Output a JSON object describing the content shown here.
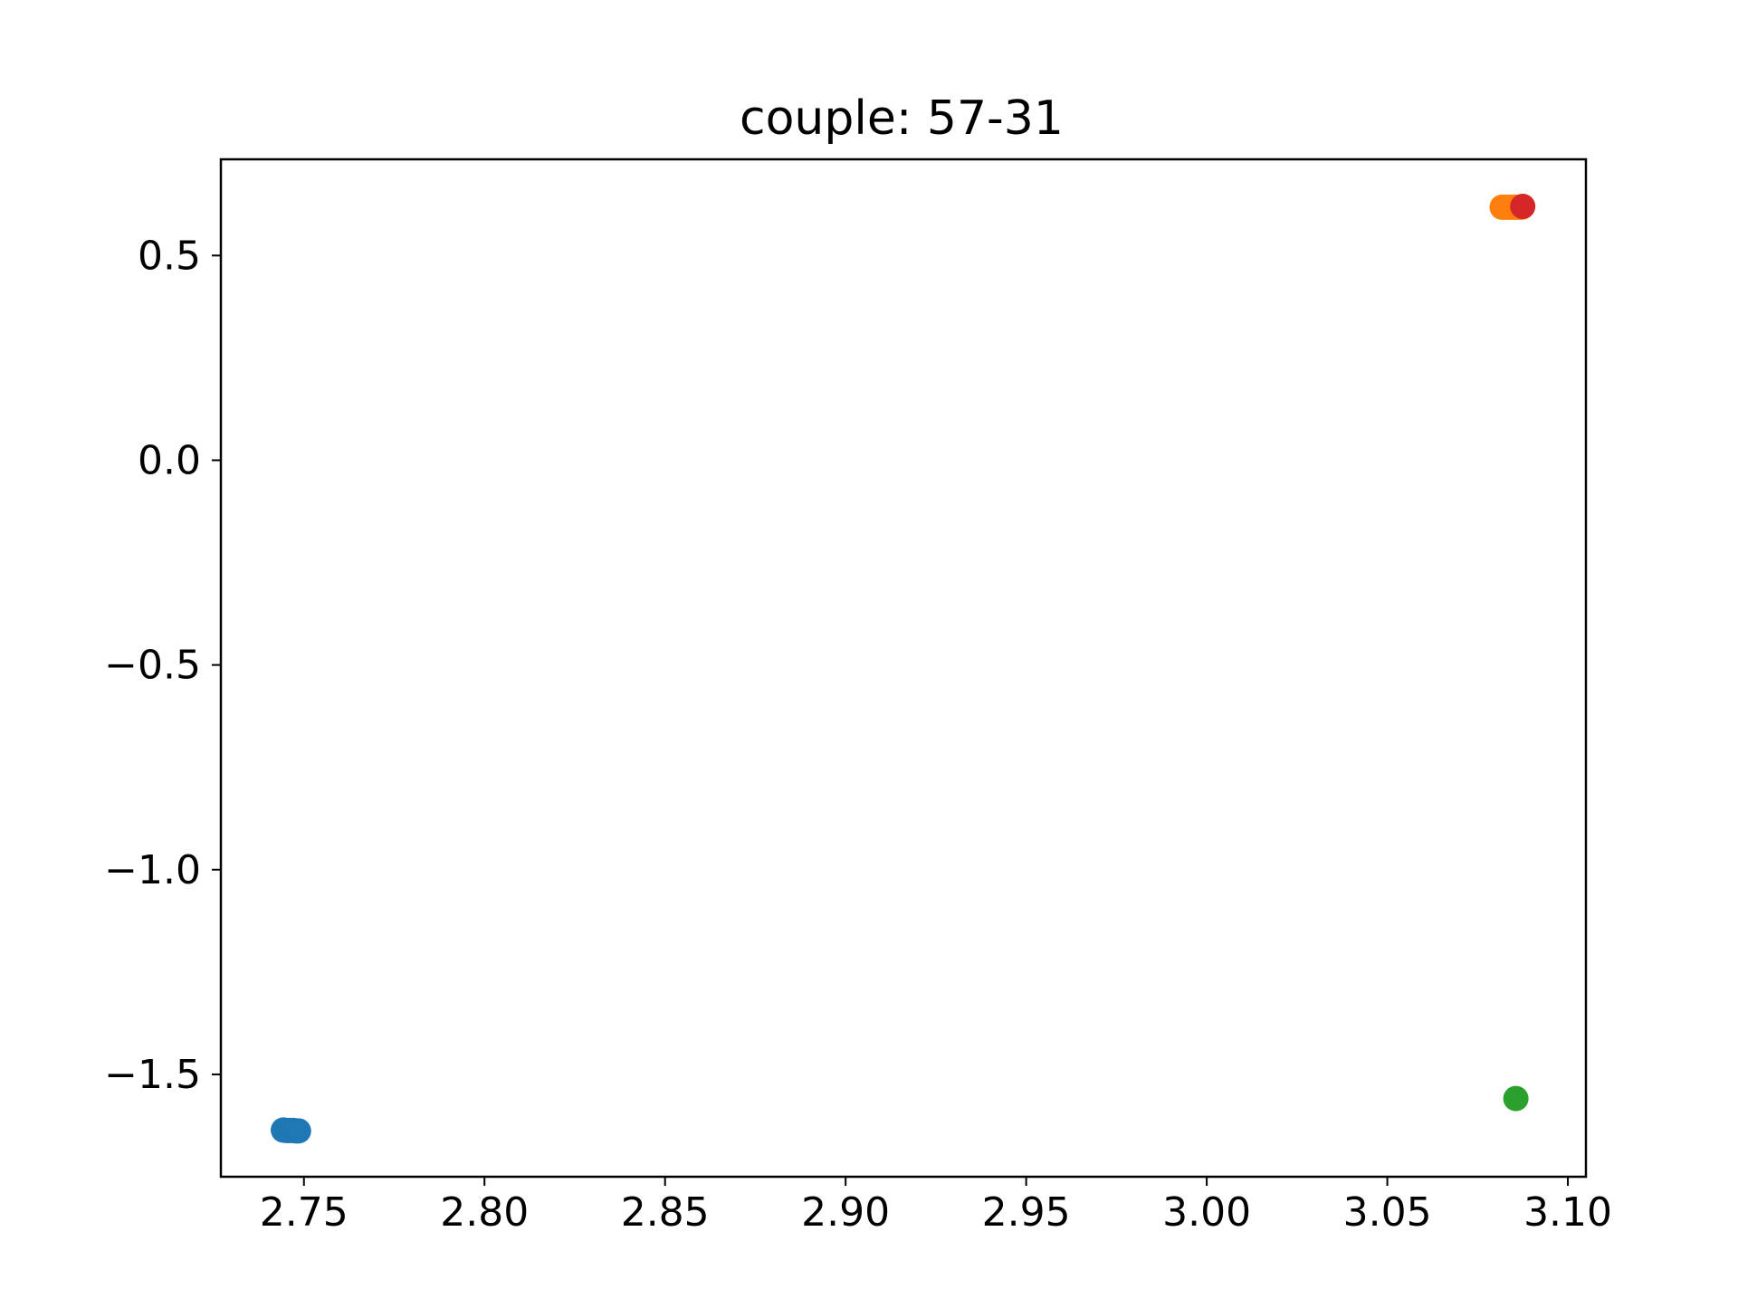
{
  "chart_data": {
    "type": "scatter",
    "title": "couple: 57-31",
    "xlabel": "",
    "ylabel": "",
    "xlim": [
      2.727,
      3.105
    ],
    "ylim": [
      -1.75,
      0.735
    ],
    "x_ticks": [
      2.75,
      2.8,
      2.85,
      2.9,
      2.95,
      3.0,
      3.05,
      3.1
    ],
    "x_tick_labels": [
      "2.75",
      "2.80",
      "2.85",
      "2.90",
      "2.95",
      "3.00",
      "3.05",
      "3.10"
    ],
    "y_ticks": [
      0.5,
      0.0,
      -0.5,
      -1.0,
      -1.5
    ],
    "y_tick_labels": [
      "0.5",
      "0.0",
      "−0.5",
      "−1.0",
      "−1.5"
    ],
    "grid": false,
    "legend": "none",
    "series": [
      {
        "color": "#1f77b4",
        "points": [
          [
            2.7443,
            -1.636
          ],
          [
            2.745,
            -1.637
          ],
          [
            2.7457,
            -1.637
          ],
          [
            2.7464,
            -1.637
          ],
          [
            2.7471,
            -1.637
          ],
          [
            2.7478,
            -1.638
          ],
          [
            2.7485,
            -1.638
          ]
        ]
      },
      {
        "color": "#ff7f0e",
        "points": [
          [
            3.0818,
            0.618
          ],
          [
            3.0826,
            0.618
          ],
          [
            3.0834,
            0.618
          ],
          [
            3.0842,
            0.618
          ],
          [
            3.085,
            0.618
          ],
          [
            3.0858,
            0.618
          ],
          [
            3.0866,
            0.618
          ],
          [
            3.0872,
            0.618
          ]
        ]
      },
      {
        "color": "#2ca02c",
        "points": [
          [
            3.0856,
            -1.559
          ]
        ]
      },
      {
        "color": "#d62728",
        "points": [
          [
            3.0875,
            0.62
          ]
        ]
      }
    ]
  }
}
